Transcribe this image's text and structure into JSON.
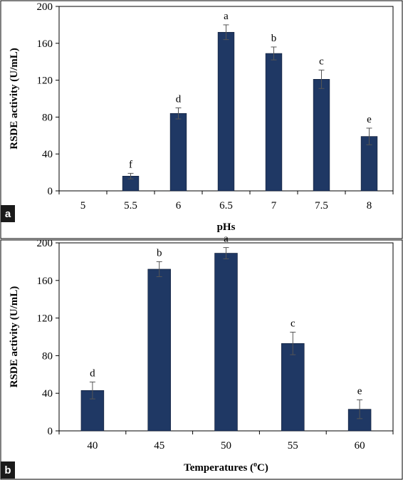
{
  "chart_data": [
    {
      "type": "bar",
      "panel_label": "a",
      "categories": [
        "5",
        "5.5",
        "6",
        "6.5",
        "7",
        "7.5",
        "8"
      ],
      "values": [
        0,
        16,
        84,
        172,
        149,
        121,
        59
      ],
      "errors": [
        0,
        3,
        6,
        8,
        7,
        10,
        9
      ],
      "significance": [
        "",
        "f",
        "d",
        "a",
        "b",
        "c",
        "e"
      ],
      "xlabel": "pHs",
      "ylabel": "RSDE activity (U/mL)",
      "ylim": [
        0,
        200
      ],
      "yticks": [
        0,
        40,
        80,
        120,
        160,
        200
      ],
      "grid": false,
      "bar_color": "#1f3864"
    },
    {
      "type": "bar",
      "panel_label": "b",
      "categories": [
        "40",
        "45",
        "50",
        "55",
        "60"
      ],
      "values": [
        43,
        172,
        189,
        93,
        23
      ],
      "errors": [
        9,
        8,
        6,
        12,
        10
      ],
      "significance": [
        "d",
        "b",
        "a",
        "c",
        "e"
      ],
      "xlabel_main": "Temperatures (",
      "xlabel_sup": "o",
      "xlabel_end": "C)",
      "ylabel": "RSDE activity (U/mL)",
      "ylim": [
        0,
        200
      ],
      "yticks": [
        0,
        40,
        80,
        120,
        160,
        200
      ],
      "grid": false,
      "bar_color": "#1f3864"
    }
  ]
}
